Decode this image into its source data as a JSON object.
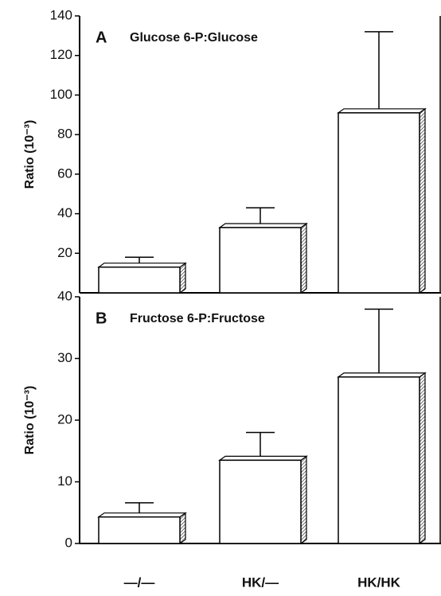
{
  "chart_data": [
    {
      "type": "bar",
      "panel": "A",
      "title": "Glucose 6-P:Glucose",
      "y_label": "Ratio (10⁻³)",
      "categories": [
        null,
        null,
        null
      ],
      "values": [
        13,
        33,
        91
      ],
      "errors": [
        5,
        10,
        41
      ],
      "color": "#ffffff",
      "ylim": [
        0,
        140
      ],
      "yticks": [
        20,
        40,
        60,
        80,
        100,
        120,
        140
      ]
    },
    {
      "type": "bar",
      "panel": "B",
      "title": "Fructose 6-P:Fructose",
      "y_label": "Ratio (10⁻³)",
      "categories": [
        "—/—",
        "HK/—",
        "HK/HK"
      ],
      "values": [
        4.3,
        13.5,
        27
      ],
      "errors": [
        2.3,
        4.5,
        11
      ],
      "color": "#ffffff",
      "ylim": [
        0,
        40
      ],
      "yticks": [
        0,
        10,
        20,
        30,
        40
      ]
    }
  ]
}
